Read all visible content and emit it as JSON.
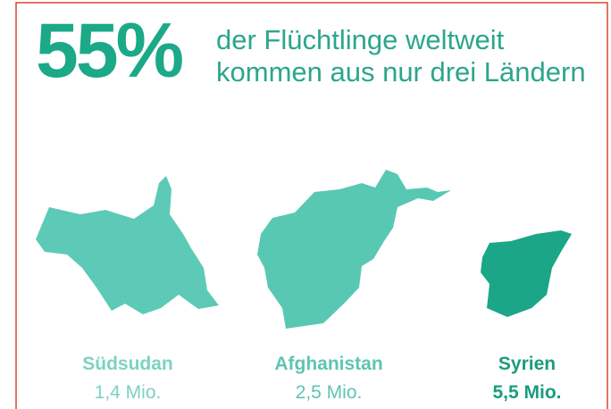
{
  "headline": {
    "percentage": "55%",
    "lines": [
      "der Flüchtlinge weltweit",
      "kommen aus nur drei Ländern"
    ]
  },
  "countries": [
    {
      "name": "Südsudan",
      "value": "1,4 Mio."
    },
    {
      "name": "Afghanistan",
      "value": "2,5 Mio."
    },
    {
      "name": "Syrien",
      "value": "5,5 Mio."
    }
  ]
}
